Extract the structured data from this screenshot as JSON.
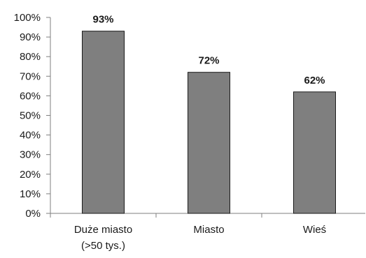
{
  "chart_data": {
    "type": "bar",
    "categories": [
      [
        "Duże miasto",
        "(>50 tys.)"
      ],
      [
        "Miasto"
      ],
      [
        "Wieś"
      ]
    ],
    "values": [
      93,
      72,
      62
    ],
    "data_labels": [
      "93%",
      "72%",
      "62%"
    ],
    "y_tick_values": [
      0,
      10,
      20,
      30,
      40,
      50,
      60,
      70,
      80,
      90,
      100
    ],
    "y_tick_labels": [
      "0%",
      "10%",
      "20%",
      "30%",
      "40%",
      "50%",
      "60%",
      "70%",
      "80%",
      "90%",
      "100%"
    ],
    "ylim": [
      0,
      100
    ],
    "title": "",
    "xlabel": "",
    "ylabel": "",
    "grid": false,
    "legend": "none",
    "colors": {
      "bar_fill": "#7f7f7f",
      "bar_stroke": "#1a1a1a",
      "axis": "#7f7f7f",
      "text": "#1a1a1a"
    }
  }
}
